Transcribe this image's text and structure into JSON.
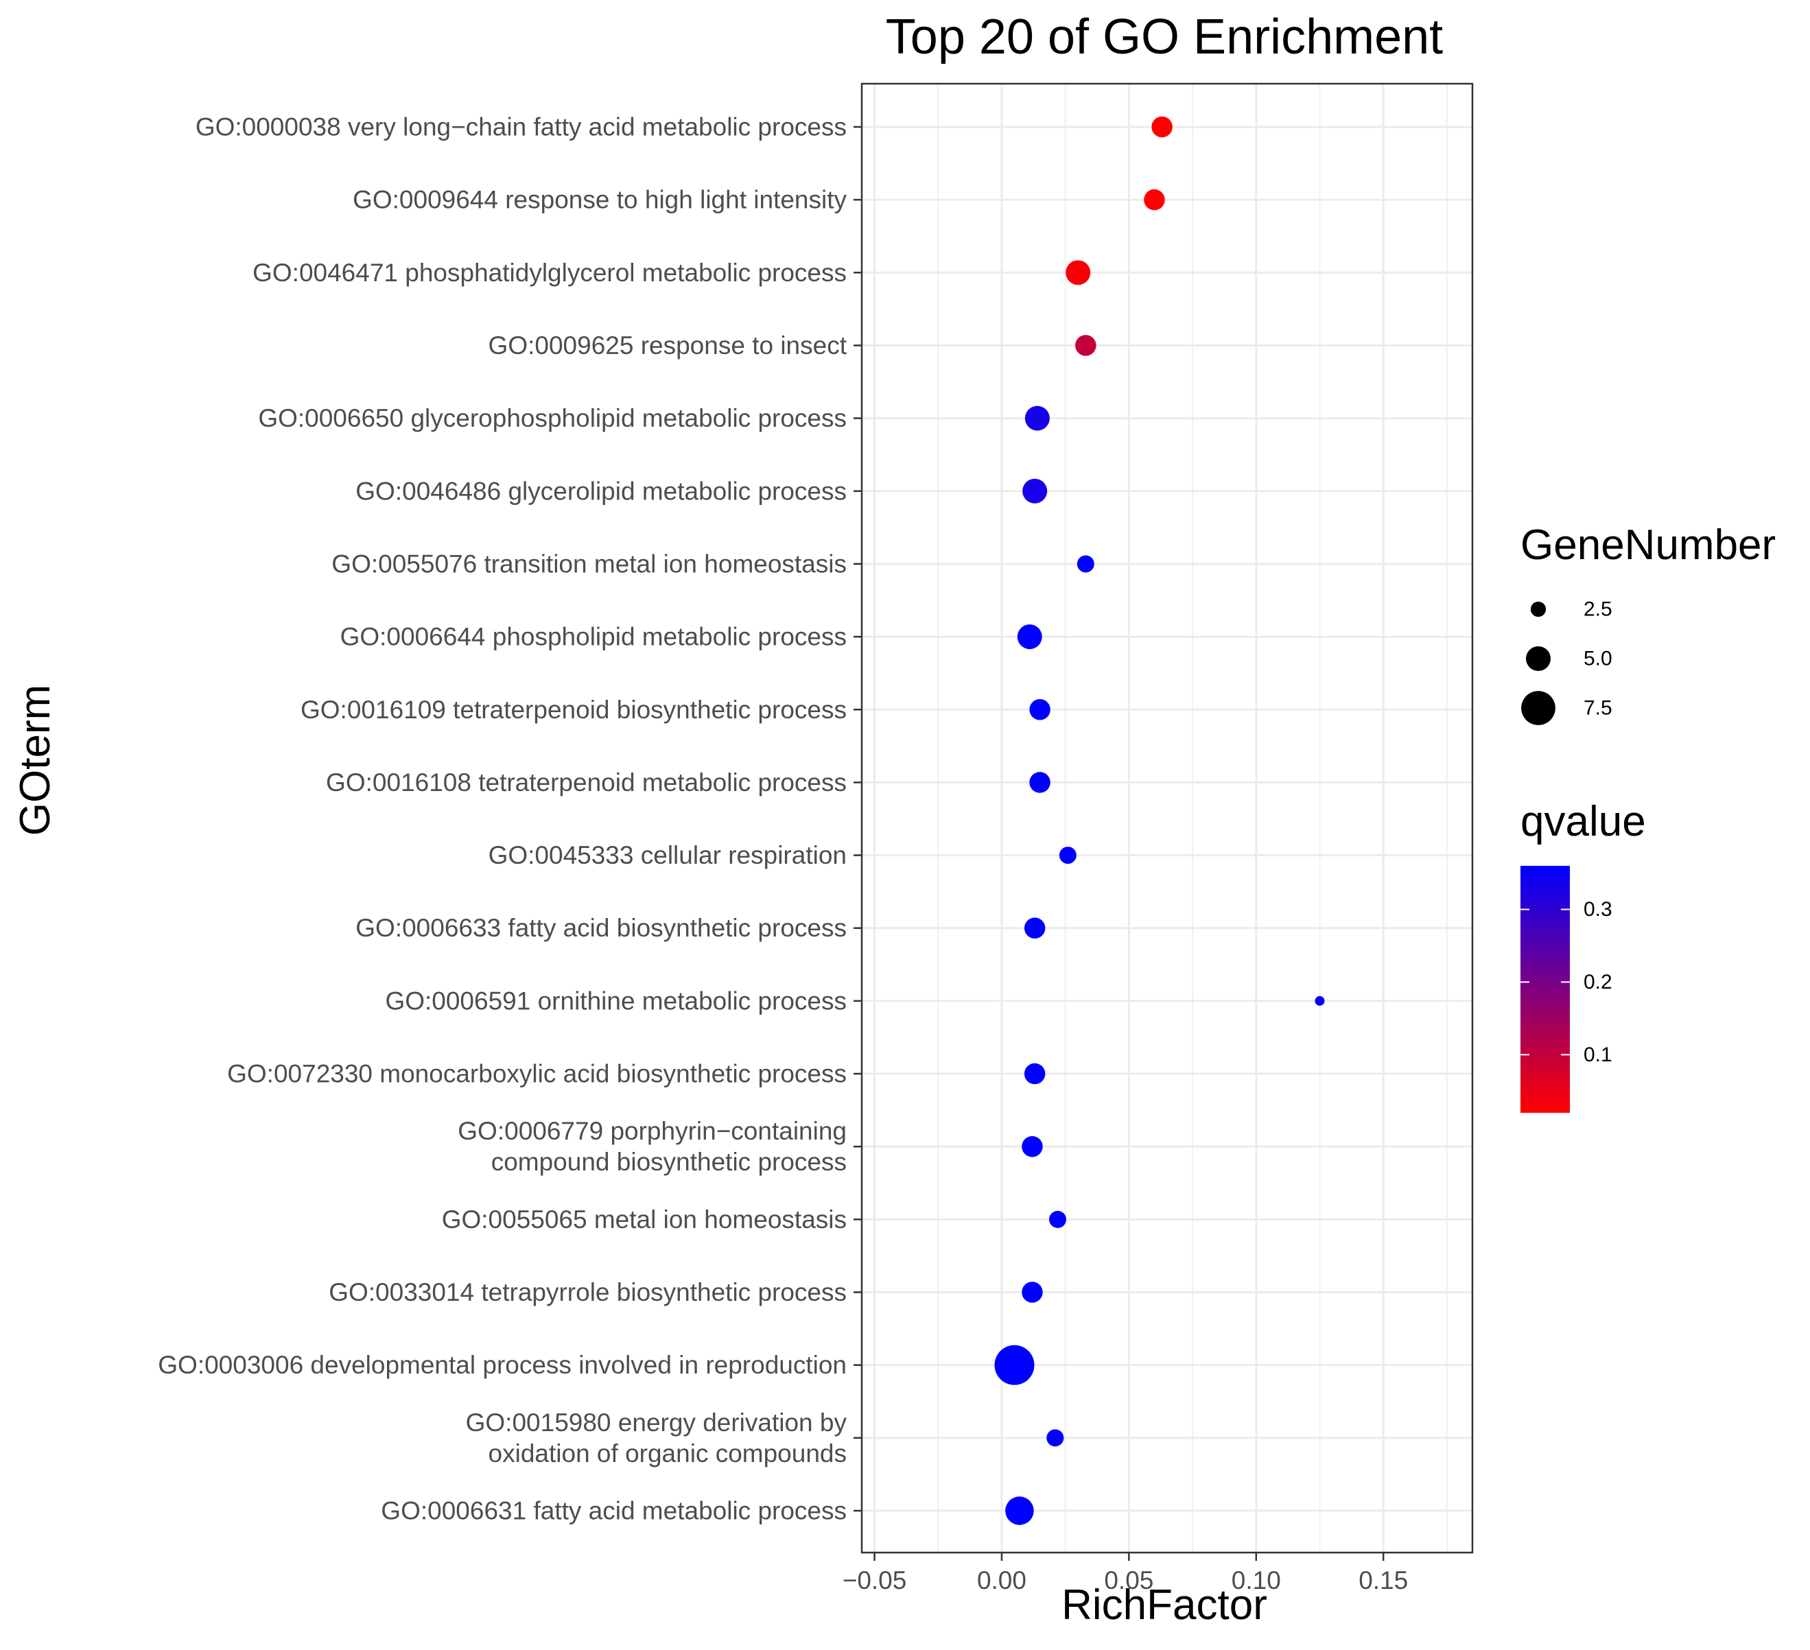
{
  "chart_data": {
    "type": "scatter",
    "title": "Top 20 of GO Enrichment",
    "xlabel": "RichFactor",
    "ylabel": "GOterm",
    "xlim": [
      -0.055,
      0.185
    ],
    "x_ticks": [
      -0.05,
      0.0,
      0.05,
      0.1,
      0.15
    ],
    "x_tick_labels": [
      "−0.05",
      "0.00",
      "0.05",
      "0.10",
      "0.15"
    ],
    "grid": true,
    "color_scale": {
      "low": "#ff0000",
      "high": "#0000ff",
      "min": 0.02,
      "max": 0.36
    },
    "size_scale": {
      "min": 1,
      "max": 9
    },
    "points": [
      {
        "term": [
          "GO:0000038 very long−chain fatty acid metabolic process"
        ],
        "richfactor": 0.063,
        "qvalue": 0.02,
        "genes": 4
      },
      {
        "term": [
          "GO:0009644 response to high light intensity"
        ],
        "richfactor": 0.06,
        "qvalue": 0.02,
        "genes": 4
      },
      {
        "term": [
          "GO:0046471 phosphatidylglycerol metabolic process"
        ],
        "richfactor": 0.03,
        "qvalue": 0.03,
        "genes": 5
      },
      {
        "term": [
          "GO:0009625 response to insect"
        ],
        "richfactor": 0.033,
        "qvalue": 0.1,
        "genes": 4
      },
      {
        "term": [
          "GO:0006650 glycerophospholipid metabolic process"
        ],
        "richfactor": 0.014,
        "qvalue": 0.33,
        "genes": 5
      },
      {
        "term": [
          "GO:0046486 glycerolipid metabolic process"
        ],
        "richfactor": 0.013,
        "qvalue": 0.33,
        "genes": 5
      },
      {
        "term": [
          "GO:0055076 transition metal ion homeostasis"
        ],
        "richfactor": 0.033,
        "qvalue": 0.36,
        "genes": 3
      },
      {
        "term": [
          "GO:0006644 phospholipid metabolic process"
        ],
        "richfactor": 0.011,
        "qvalue": 0.36,
        "genes": 5
      },
      {
        "term": [
          "GO:0016109 tetraterpenoid biosynthetic process"
        ],
        "richfactor": 0.015,
        "qvalue": 0.36,
        "genes": 4
      },
      {
        "term": [
          "GO:0016108 tetraterpenoid metabolic process"
        ],
        "richfactor": 0.015,
        "qvalue": 0.36,
        "genes": 4
      },
      {
        "term": [
          "GO:0045333 cellular respiration"
        ],
        "richfactor": 0.026,
        "qvalue": 0.36,
        "genes": 3
      },
      {
        "term": [
          "GO:0006633 fatty acid biosynthetic process"
        ],
        "richfactor": 0.013,
        "qvalue": 0.36,
        "genes": 4
      },
      {
        "term": [
          "GO:0006591 ornithine metabolic process"
        ],
        "richfactor": 0.125,
        "qvalue": 0.36,
        "genes": 1
      },
      {
        "term": [
          "GO:0072330 monocarboxylic acid biosynthetic process"
        ],
        "richfactor": 0.013,
        "qvalue": 0.36,
        "genes": 4
      },
      {
        "term": [
          "GO:0006779 porphyrin−containing",
          "compound biosynthetic process"
        ],
        "richfactor": 0.012,
        "qvalue": 0.36,
        "genes": 4
      },
      {
        "term": [
          "GO:0055065 metal ion homeostasis"
        ],
        "richfactor": 0.022,
        "qvalue": 0.36,
        "genes": 3
      },
      {
        "term": [
          "GO:0033014 tetrapyrrole biosynthetic process"
        ],
        "richfactor": 0.012,
        "qvalue": 0.36,
        "genes": 4
      },
      {
        "term": [
          "GO:0003006 developmental process involved in reproduction"
        ],
        "richfactor": 0.005,
        "qvalue": 0.36,
        "genes": 9
      },
      {
        "term": [
          "GO:0015980 energy derivation by",
          "oxidation of organic compounds"
        ],
        "richfactor": 0.021,
        "qvalue": 0.36,
        "genes": 3
      },
      {
        "term": [
          "GO:0006631 fatty acid metabolic process"
        ],
        "richfactor": 0.007,
        "qvalue": 0.36,
        "genes": 6
      }
    ],
    "legend_size": {
      "title": "GeneNumber",
      "entries": [
        {
          "label": "2.5",
          "value": 2.5
        },
        {
          "label": "5.0",
          "value": 5.0
        },
        {
          "label": "7.5",
          "value": 7.5
        }
      ]
    },
    "legend_color": {
      "title": "qvalue",
      "ticks": [
        {
          "label": "0.3",
          "value": 0.3
        },
        {
          "label": "0.2",
          "value": 0.2
        },
        {
          "label": "0.1",
          "value": 0.1
        }
      ]
    }
  }
}
